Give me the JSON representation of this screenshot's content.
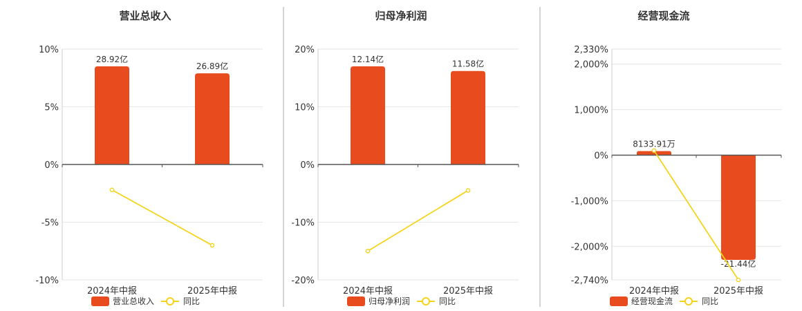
{
  "chart_data": [
    {
      "type": "bar",
      "title": "营业总收入",
      "categories": [
        "2024年中报",
        "2025年中报"
      ],
      "bar_axis": {
        "max": 10,
        "min": -10
      },
      "line_axis": {
        "max": 10,
        "min": -10
      },
      "yticks": [
        {
          "v": 10,
          "label": "10%"
        },
        {
          "v": 5,
          "label": "5%"
        },
        {
          "v": 0,
          "label": "0%"
        },
        {
          "v": -5,
          "label": "-5%"
        },
        {
          "v": -10,
          "label": "-10%"
        }
      ],
      "series": [
        {
          "name": "营业总收入",
          "kind": "bar",
          "color": "#e84c1e",
          "values": [
            28.92,
            26.89
          ],
          "labels": [
            "28.92亿",
            "26.89亿"
          ],
          "bar_scale": [
            8.5,
            7.9
          ]
        },
        {
          "name": "同比",
          "kind": "line",
          "color": "#f5d31a",
          "values": [
            -2.2,
            -7.0
          ]
        }
      ]
    },
    {
      "type": "bar",
      "title": "归母净利润",
      "categories": [
        "2024年中报",
        "2025年中报"
      ],
      "bar_axis": {
        "max": 20,
        "min": -20
      },
      "line_axis": {
        "max": 20,
        "min": -20
      },
      "yticks": [
        {
          "v": 20,
          "label": "20%"
        },
        {
          "v": 10,
          "label": "10%"
        },
        {
          "v": 0,
          "label": "0%"
        },
        {
          "v": -10,
          "label": "-10%"
        },
        {
          "v": -20,
          "label": "-20%"
        }
      ],
      "series": [
        {
          "name": "归母净利润",
          "kind": "bar",
          "color": "#e84c1e",
          "values": [
            12.14,
            11.58
          ],
          "labels": [
            "12.14亿",
            "11.58亿"
          ],
          "bar_scale": [
            17.0,
            16.2
          ]
        },
        {
          "name": "同比",
          "kind": "line",
          "color": "#f5d31a",
          "values": [
            -15.0,
            -4.5
          ]
        }
      ]
    },
    {
      "type": "bar",
      "title": "经营现金流",
      "categories": [
        "2024年中报",
        "2025年中报"
      ],
      "bar_axis": {
        "max": 2330,
        "min": -2740
      },
      "line_axis": {
        "max": 2330,
        "min": -2740
      },
      "yticks": [
        {
          "v": 2330,
          "label": "2,330%"
        },
        {
          "v": 2000,
          "label": "2,000%"
        },
        {
          "v": 1000,
          "label": "1,000%"
        },
        {
          "v": 0,
          "label": "0%"
        },
        {
          "v": -1000,
          "label": "-1,000%"
        },
        {
          "v": -2000,
          "label": "-2,000%"
        },
        {
          "v": -2740,
          "label": "-2,740%"
        }
      ],
      "series": [
        {
          "name": "经营现金流",
          "kind": "bar",
          "color": "#e84c1e",
          "values": [
            0.813391,
            -21.44
          ],
          "labels": [
            "8133.91万",
            "-21.44亿"
          ],
          "bar_scale": [
            90,
            -2300
          ]
        },
        {
          "name": "同比",
          "kind": "line",
          "color": "#f5d31a",
          "values": [
            100,
            -2740
          ]
        }
      ]
    }
  ]
}
